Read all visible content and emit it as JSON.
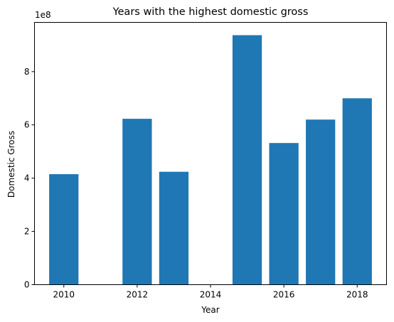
{
  "chart_data": {
    "type": "bar",
    "title": "Years with the highest domestic gross",
    "xlabel": "Year",
    "ylabel": "Domestic Gross",
    "y_offset_label": "1e8",
    "x": [
      2010,
      2012,
      2013,
      2015,
      2016,
      2017,
      2018
    ],
    "values": [
      415000000,
      623000000,
      424000000,
      937000000,
      532000000,
      620000000,
      700000000
    ],
    "xlim": [
      2009.2,
      2018.8
    ],
    "ylim": [
      0,
      985000000
    ],
    "x_ticks": [
      2010,
      2012,
      2014,
      2016,
      2018
    ],
    "y_ticks": [
      0,
      2,
      4,
      6,
      8
    ],
    "y_tick_scale": 100000000,
    "bar_color": "#1f77b4",
    "grid": false,
    "legend": "none"
  }
}
